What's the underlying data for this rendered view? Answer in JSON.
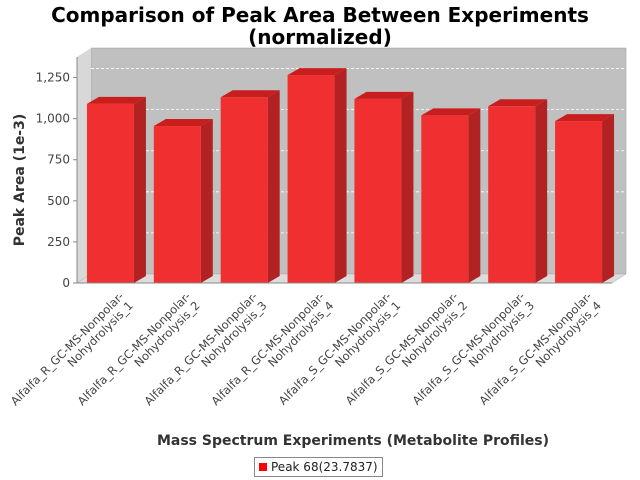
{
  "chart_data": {
    "type": "bar",
    "title_line1": "Comparison of Peak Area Between Experiments",
    "title_line2": "(normalized)",
    "xlabel": "Mass Spectrum Experiments (Metabolite Profiles)",
    "ylabel": "Peak Area (1e-3)",
    "ylim": [
      0,
      1375
    ],
    "yticks": [
      "0",
      "250",
      "500",
      "750",
      "1,000",
      "1,250"
    ],
    "ytick_values": [
      0,
      250,
      500,
      750,
      1000,
      1250
    ],
    "grid": true,
    "legend_position": "bottom",
    "colors": {
      "bar": "#ff0000",
      "plot_background": "#c0c0c0"
    },
    "categories": [
      [
        "Alfalfa_R_GC-MS-Nonpolar-",
        "Nohydrolysis_1"
      ],
      [
        "Alfalfa_R_GC-MS-Nonpolar-",
        "Nohydrolysis_2"
      ],
      [
        "Alfalfa_R_GC-MS-Nonpolar-",
        "Nohydrolysis_3"
      ],
      [
        "Alfalfa_R_GC-MS-Nonpolar-",
        "Nohydrolysis_4"
      ],
      [
        "Alfalfa_S_GC-MS-Nonpolar-",
        "Nohydrolysis_1"
      ],
      [
        "Alfalfa_S_GC-MS-Nonpolar-",
        "Nohydrolysis_2"
      ],
      [
        "Alfalfa_S_GC-MS-Nonpolar-",
        "Nohydrolysis_3"
      ],
      [
        "Alfalfa_S_GC-MS-Nonpolar-",
        "Nohydrolysis_4"
      ]
    ],
    "series": [
      {
        "name": "Peak 68(23.7837)",
        "values": [
          1090,
          955,
          1130,
          1265,
          1120,
          1020,
          1075,
          985
        ]
      }
    ]
  }
}
